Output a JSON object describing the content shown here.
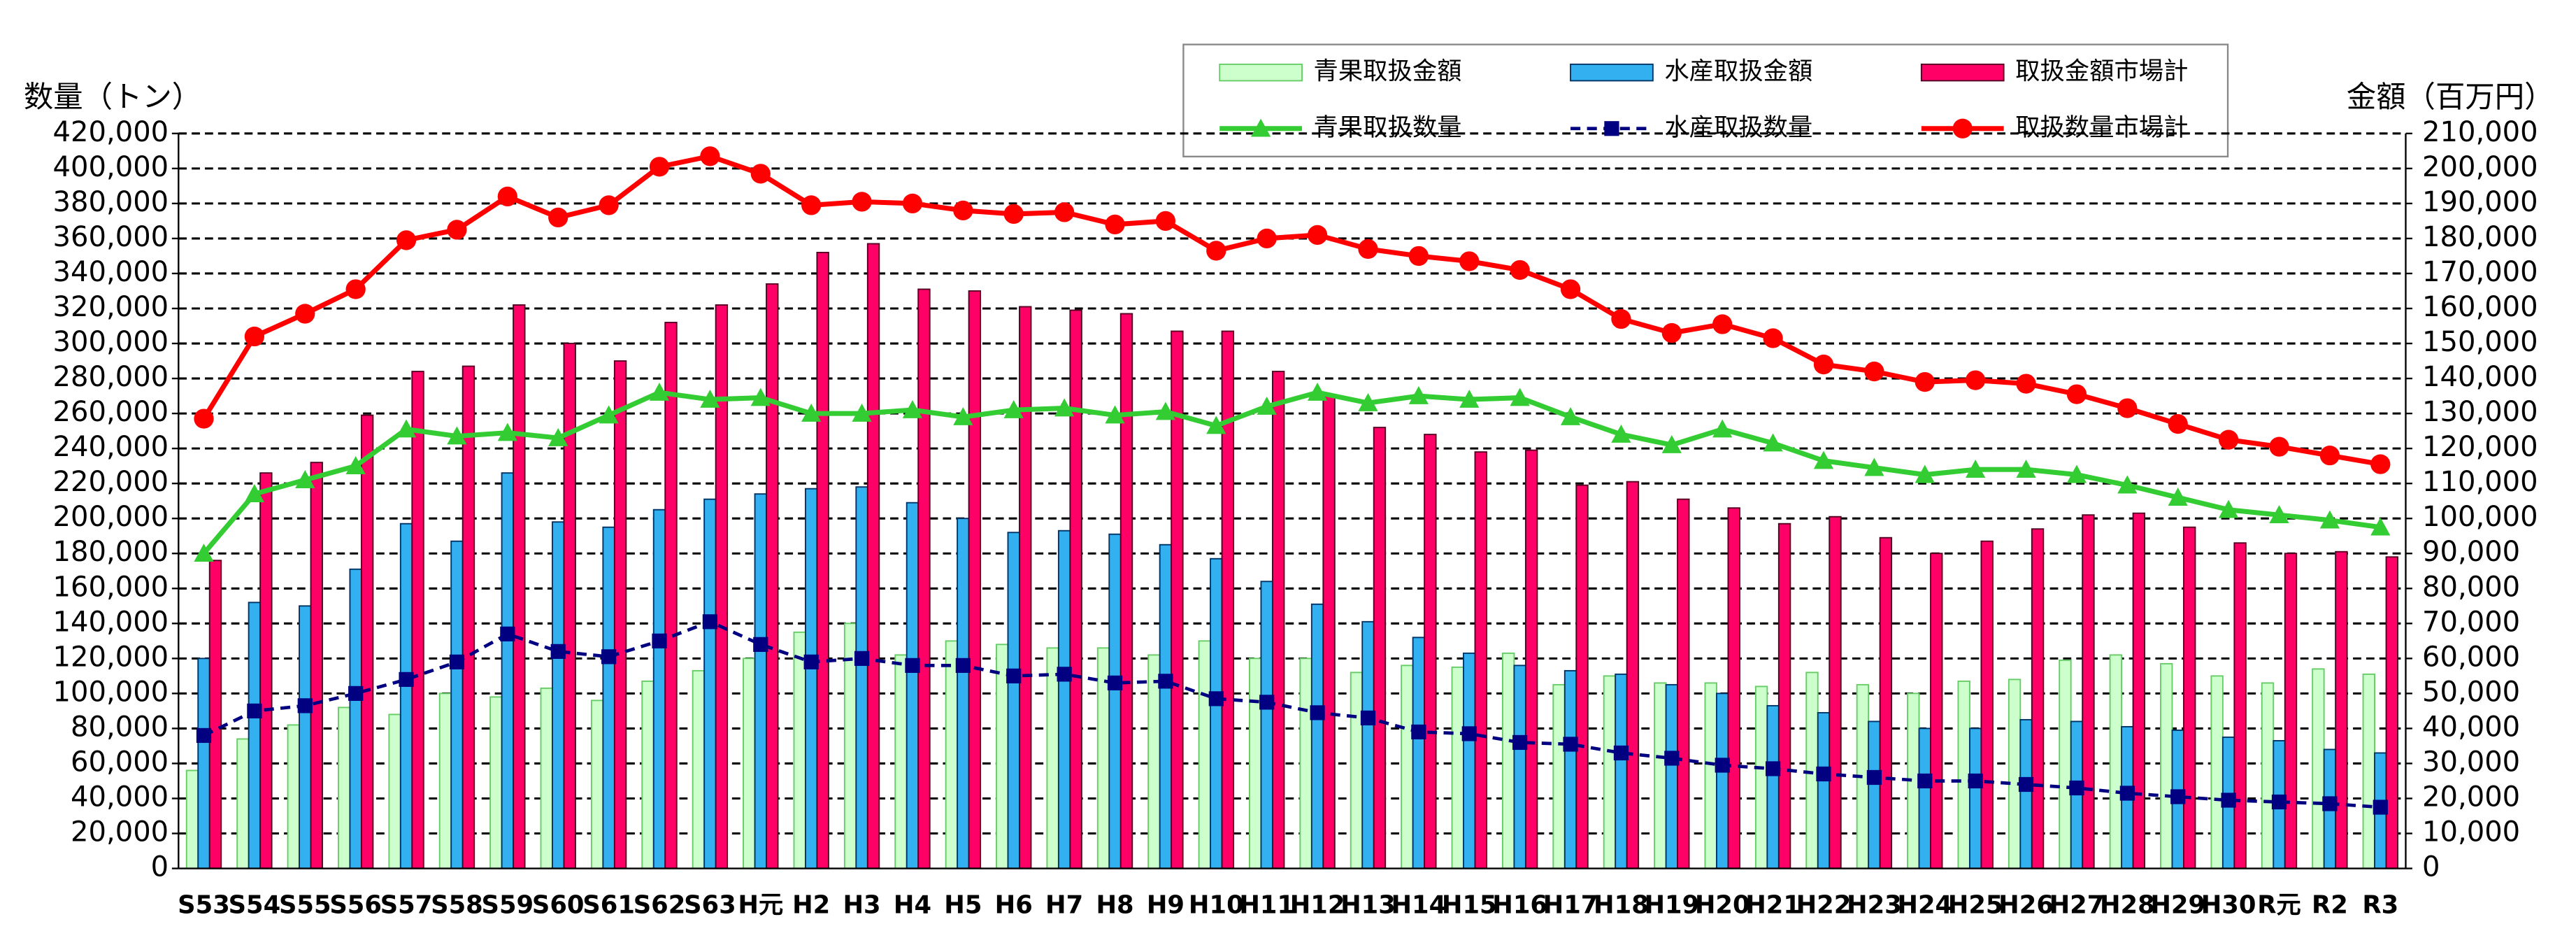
{
  "chart_data": {
    "type": "bar",
    "ylabel": "数量（トン）",
    "y2label": "金額（百万円）",
    "categories": [
      "S53",
      "S54",
      "S55",
      "S56",
      "S57",
      "S58",
      "S59",
      "S60",
      "S61",
      "S62",
      "S63",
      "H元",
      "H2",
      "H3",
      "H4",
      "H5",
      "H6",
      "H7",
      "H8",
      "H9",
      "H10",
      "H11",
      "H12",
      "H13",
      "H14",
      "H15",
      "H16",
      "H17",
      "H18",
      "H19",
      "H20",
      "H21",
      "H22",
      "H23",
      "H24",
      "H25",
      "H26",
      "H27",
      "H28",
      "H29",
      "H30",
      "R元",
      "R2",
      "R3"
    ],
    "ylim": [
      0,
      420000
    ],
    "yticks": [
      0,
      {
        "value": 20000,
        "label": "20,000"
      },
      {
        "value": 40000,
        "label": "40,000"
      },
      {
        "value": 60000,
        "label": "60,000"
      },
      {
        "value": 80000,
        "label": "80,000"
      },
      {
        "value": 100000,
        "label": "100,000"
      },
      {
        "value": 120000,
        "label": "120,000"
      },
      {
        "value": 140000,
        "label": "140,000"
      },
      {
        "value": 160000,
        "label": "160,000"
      },
      {
        "value": 180000,
        "label": "180,000"
      },
      {
        "value": 200000,
        "label": "200,000"
      },
      {
        "value": 220000,
        "label": "220,000"
      },
      {
        "value": 240000,
        "label": "240,000"
      },
      {
        "value": 260000,
        "label": "260,000"
      },
      {
        "value": 280000,
        "label": "280,000"
      },
      {
        "value": 300000,
        "label": "300,000"
      },
      {
        "value": 320000,
        "label": "320,000"
      },
      {
        "value": 340000,
        "label": "340,000"
      },
      {
        "value": 360000,
        "label": "360,000"
      },
      {
        "value": 380000,
        "label": "380,000"
      },
      {
        "value": 400000,
        "label": "400,000"
      },
      {
        "value": 420000,
        "label": "420,000"
      }
    ],
    "y2lim": [
      0,
      210000
    ],
    "y2ticks": [
      0,
      {
        "value": 10000,
        "label": "10,000"
      },
      {
        "value": 20000,
        "label": "20,000"
      },
      {
        "value": 30000,
        "label": "30,000"
      },
      {
        "value": 40000,
        "label": "40,000"
      },
      {
        "value": 50000,
        "label": "50,000"
      },
      {
        "value": 60000,
        "label": "60,000"
      },
      {
        "value": 70000,
        "label": "70,000"
      },
      {
        "value": 80000,
        "label": "80,000"
      },
      {
        "value": 90000,
        "label": "90,000"
      },
      {
        "value": 100000,
        "label": "100,000"
      },
      {
        "value": 110000,
        "label": "110,000"
      },
      {
        "value": 120000,
        "label": "120,000"
      },
      {
        "value": 130000,
        "label": "130,000"
      },
      {
        "value": 140000,
        "label": "140,000"
      },
      {
        "value": 150000,
        "label": "150,000"
      },
      {
        "value": 160000,
        "label": "160,000"
      },
      {
        "value": 170000,
        "label": "170,000"
      },
      {
        "value": 180000,
        "label": "180,000"
      },
      {
        "value": 190000,
        "label": "190,000"
      },
      {
        "value": 200000,
        "label": "200,000"
      },
      {
        "value": 210000,
        "label": "210,000"
      }
    ],
    "grid": true,
    "series": [
      {
        "name": "青果取扱金額",
        "type": "bar",
        "axis": "y2",
        "color": "#ccffcc",
        "stroke": "#66cc66",
        "values": [
          28000,
          37000,
          41000,
          46000,
          44000,
          50000,
          49000,
          51500,
          48000,
          53500,
          56500,
          60000,
          67500,
          70000,
          61000,
          65000,
          64000,
          63000,
          63000,
          61000,
          65000,
          60000,
          60000,
          56000,
          58000,
          57500,
          61500,
          52500,
          55000,
          53000,
          53000,
          52000,
          56000,
          52500,
          50000,
          53500,
          54000,
          59500,
          61000,
          58500,
          55000,
          53000,
          57000,
          55500
        ]
      },
      {
        "name": "水産取扱金額",
        "type": "bar",
        "axis": "y2",
        "color": "#33b0f0",
        "stroke": "#003366",
        "values": [
          60000,
          76000,
          75000,
          85500,
          98500,
          93500,
          113000,
          99000,
          97500,
          102500,
          105500,
          107000,
          108500,
          109000,
          104500,
          100000,
          96000,
          96500,
          95500,
          92500,
          88500,
          82000,
          75500,
          70500,
          66000,
          61500,
          58000,
          56500,
          55500,
          52500,
          50000,
          46500,
          44500,
          42000,
          40000,
          40000,
          42500,
          42000,
          40500,
          39500,
          37500,
          36500,
          34000,
          33000
        ]
      },
      {
        "name": "取扱金額市場計",
        "type": "bar",
        "axis": "y2",
        "color": "#ff0066",
        "stroke": "#550022",
        "values": [
          88000,
          113000,
          116000,
          129500,
          142000,
          143500,
          161000,
          150000,
          145000,
          156000,
          161000,
          167000,
          176000,
          178500,
          165500,
          165000,
          160500,
          159500,
          158500,
          153500,
          153500,
          142000,
          135000,
          126000,
          124000,
          119000,
          119500,
          109500,
          110500,
          105500,
          103000,
          98500,
          100500,
          94500,
          90000,
          93500,
          97000,
          101000,
          101500,
          97500,
          93000,
          90000,
          90500,
          89000
        ]
      },
      {
        "name": "青果取扱数量",
        "type": "line",
        "color": "#33cc33",
        "marker": "triangle",
        "values": [
          180000,
          214000,
          222000,
          230000,
          251000,
          247000,
          249000,
          246000,
          259000,
          272000,
          268000,
          269000,
          260000,
          260000,
          262000,
          258000,
          262000,
          263000,
          259000,
          261000,
          253000,
          264000,
          272000,
          266000,
          270000,
          268000,
          269000,
          258000,
          248000,
          242000,
          251000,
          243000,
          233000,
          229000,
          225000,
          228000,
          228000,
          225000,
          219000,
          212000,
          205000,
          202000,
          199000,
          195000
        ]
      },
      {
        "name": "水産取扱数量",
        "type": "line",
        "color": "#000080",
        "marker": "square",
        "dashed": true,
        "values": [
          76000,
          90000,
          93000,
          100000,
          108000,
          118000,
          134000,
          124000,
          121000,
          130000,
          141000,
          128000,
          118000,
          120000,
          116000,
          116000,
          110000,
          111000,
          106000,
          107000,
          97000,
          95000,
          89000,
          86000,
          78000,
          77000,
          72000,
          71000,
          66000,
          63000,
          59000,
          57000,
          54000,
          52000,
          50000,
          50000,
          48000,
          46000,
          43000,
          41000,
          39000,
          38000,
          37000,
          35000
        ]
      },
      {
        "name": "取扱数量市場計",
        "type": "line",
        "color": "#ff0000",
        "marker": "circle",
        "values": [
          257000,
          304000,
          317000,
          331000,
          359000,
          365000,
          384000,
          372000,
          379000,
          401000,
          407000,
          397000,
          379000,
          381000,
          380000,
          376000,
          374000,
          375000,
          368000,
          370000,
          353000,
          360000,
          362000,
          354000,
          350000,
          347000,
          342000,
          331000,
          314000,
          306000,
          311000,
          303000,
          288000,
          284000,
          278000,
          279000,
          277000,
          271000,
          263000,
          254000,
          245000,
          241000,
          236000,
          231000
        ]
      }
    ]
  }
}
